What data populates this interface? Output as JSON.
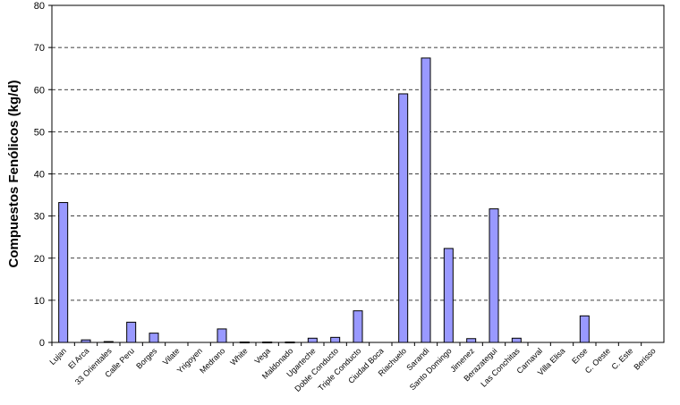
{
  "chart_data": {
    "type": "bar",
    "title": "",
    "xlabel": "",
    "ylabel": "Compuestos Fenólicos (kg/d)",
    "ylim": [
      0,
      80
    ],
    "yticks": [
      0,
      10,
      20,
      30,
      40,
      50,
      60,
      70,
      80
    ],
    "grid": "horizontal dashed",
    "legend": "none",
    "categories": [
      "Lujan",
      "El Arca",
      "33 Orientales",
      "Calle Peru",
      "Borges",
      "Vilate",
      "Yrigoyen",
      "Medrano",
      "White",
      "Vega",
      "Maldonado",
      "Ugarteche",
      "Doble Conducto",
      "Triple Conducto",
      "Ciudad Boca",
      "Riachuelo",
      "Sarandi",
      "Santo Domingo",
      "Jimenez",
      "Berazategui",
      "Las Conchitas",
      "Carnaval",
      "Villa Elisa",
      "Ense",
      "C. Oeste",
      "C. Este",
      "Berisso"
    ],
    "values": [
      33.2,
      0.6,
      0.2,
      4.8,
      2.2,
      0,
      0,
      3.2,
      0.1,
      0.1,
      0.1,
      1.0,
      1.2,
      7.5,
      0,
      59.0,
      67.5,
      22.3,
      0.9,
      31.7,
      1.0,
      0,
      0,
      6.3,
      0,
      0,
      0
    ],
    "bar_color": "#9999FF",
    "bar_stroke": "#000000"
  }
}
